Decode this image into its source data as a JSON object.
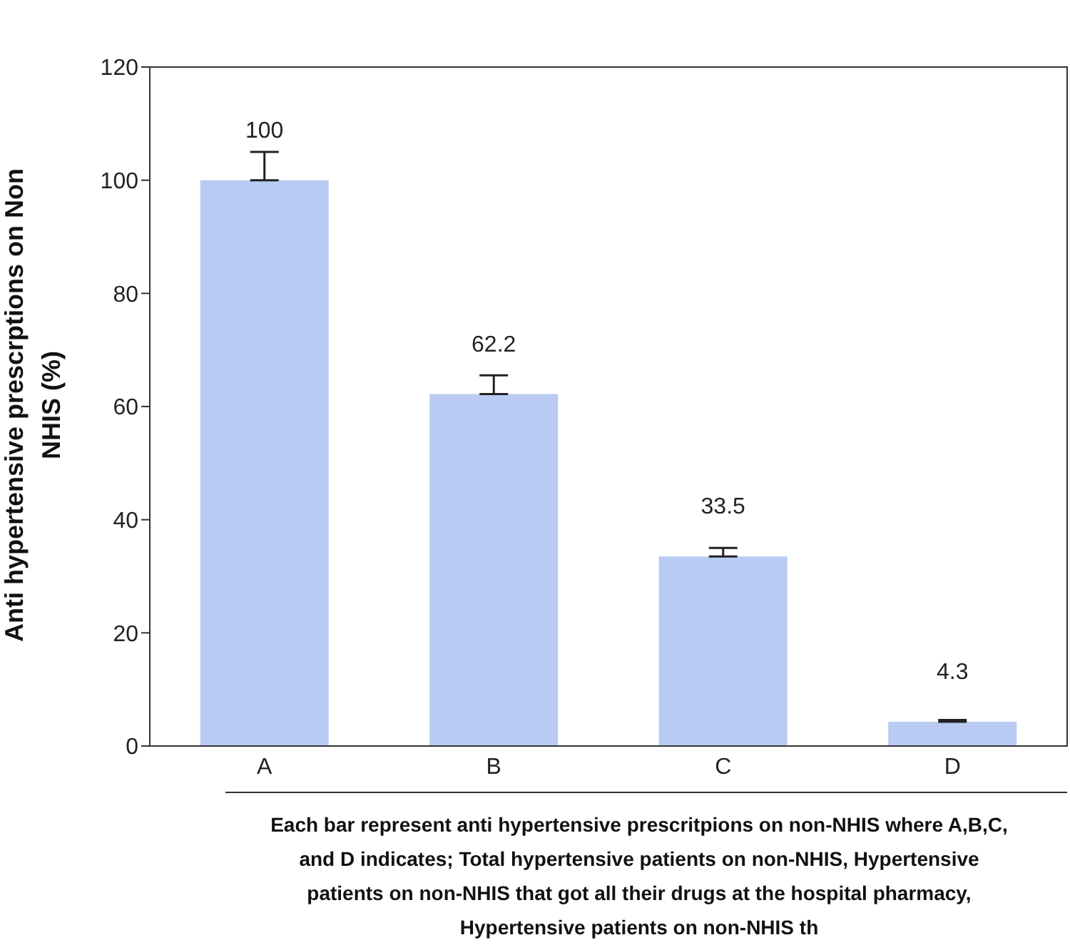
{
  "chart_data": {
    "type": "bar",
    "categories": [
      "A",
      "B",
      "C",
      "D"
    ],
    "values": [
      100,
      62.2,
      33.5,
      4.3
    ],
    "errors": [
      [
        100,
        105
      ],
      [
        62.2,
        65.5
      ],
      [
        33.5,
        35
      ],
      [
        4.3,
        4.6
      ]
    ],
    "color": "#b9cbf2",
    "data_labels": true,
    "ylabel": "Anti hypertensive prescrptions on Non NHIS (%)",
    "xlabel": "Each bar represent anti hypertensive prescritpions on non-NHIS where A,B,C, and D indicates; Total hypertensive patients on non-NHIS, Hypertensive patients on non-NHIS that got all their drugs at the hospital pharmacy, Hypertensive patients on non-NHIS th",
    "ylim": [
      0,
      120
    ],
    "yticks": [
      0,
      20,
      40,
      60,
      80,
      100,
      120
    ]
  }
}
